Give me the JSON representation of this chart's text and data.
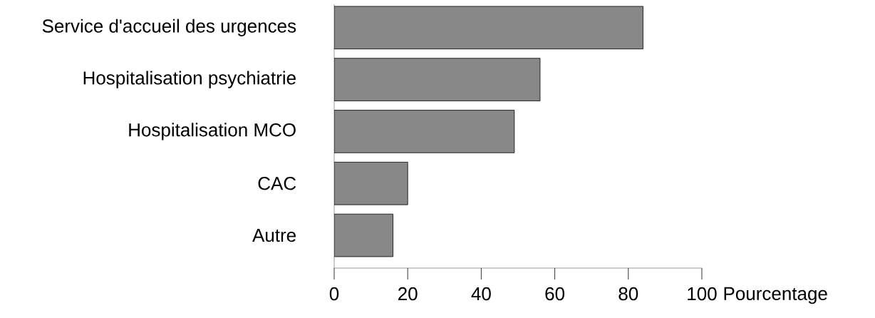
{
  "chart_data": {
    "type": "bar",
    "orientation": "horizontal",
    "categories": [
      "Service d'accueil des urgences",
      "Hospitalisation psychiatrie",
      "Hospitalisation MCO",
      "CAC",
      "Autre"
    ],
    "values": [
      84,
      56,
      49,
      20,
      16
    ],
    "color": "#888888",
    "xlim": [
      0,
      100
    ],
    "xticks": [
      0,
      20,
      40,
      60,
      80,
      100
    ],
    "xlabel": "Pourcentage"
  }
}
